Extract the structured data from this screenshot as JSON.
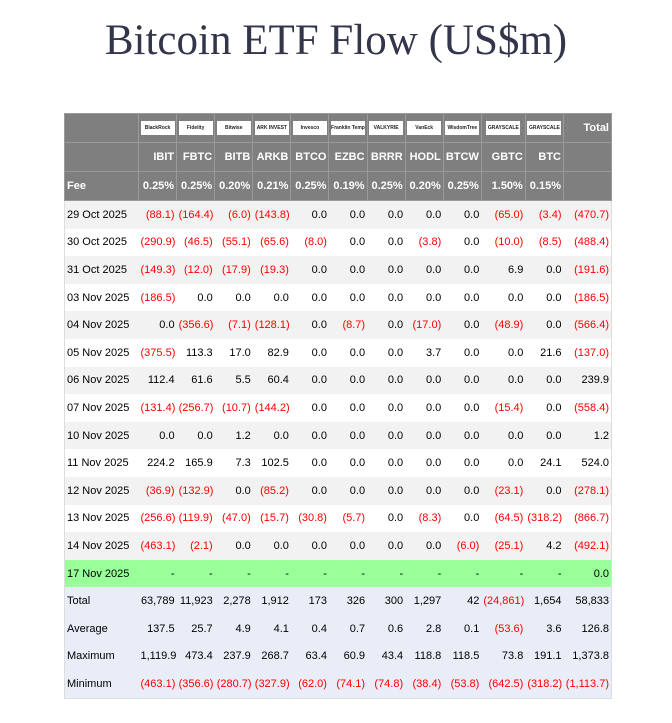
{
  "title": "Bitcoin ETF Flow (US$m)",
  "logos": [
    "BlackRock",
    "Fidelity",
    "Bitwise",
    "ARK INVEST",
    "Invesco",
    "Franklin Templeton",
    "VALKYRIE",
    "VanEck",
    "WisdomTree",
    "GRAYSCALE",
    "GRAYSCALE"
  ],
  "total_header": "Total",
  "tickers": [
    "IBIT",
    "FBTC",
    "BITB",
    "ARKB",
    "BTCO",
    "EZBC",
    "BRRR",
    "HODL",
    "BTCW",
    "GBTC",
    "BTC"
  ],
  "fee_label": "Fee",
  "fees": [
    "0.25%",
    "0.25%",
    "0.20%",
    "0.21%",
    "0.25%",
    "0.19%",
    "0.25%",
    "0.20%",
    "0.25%",
    "1.50%",
    "0.15%"
  ],
  "colors": {
    "header_bg": "#7f7f7f",
    "negative": "#ff0000",
    "today_bg": "#99ff99",
    "summary_bg": "#e8edf7"
  },
  "rows": [
    {
      "date": "29 Oct 2025",
      "values": [
        "(88.1)",
        "(164.4)",
        "(6.0)",
        "(143.8)",
        "0.0",
        "0.0",
        "0.0",
        "0.0",
        "0.0",
        "(65.0)",
        "(3.4)",
        "(470.7)"
      ]
    },
    {
      "date": "30 Oct 2025",
      "values": [
        "(290.9)",
        "(46.5)",
        "(55.1)",
        "(65.6)",
        "(8.0)",
        "0.0",
        "0.0",
        "(3.8)",
        "0.0",
        "(10.0)",
        "(8.5)",
        "(488.4)"
      ]
    },
    {
      "date": "31 Oct 2025",
      "values": [
        "(149.3)",
        "(12.0)",
        "(17.9)",
        "(19.3)",
        "0.0",
        "0.0",
        "0.0",
        "0.0",
        "0.0",
        "6.9",
        "0.0",
        "(191.6)"
      ]
    },
    {
      "date": "03 Nov 2025",
      "values": [
        "(186.5)",
        "0.0",
        "0.0",
        "0.0",
        "0.0",
        "0.0",
        "0.0",
        "0.0",
        "0.0",
        "0.0",
        "0.0",
        "(186.5)"
      ]
    },
    {
      "date": "04 Nov 2025",
      "values": [
        "0.0",
        "(356.6)",
        "(7.1)",
        "(128.1)",
        "0.0",
        "(8.7)",
        "0.0",
        "(17.0)",
        "0.0",
        "(48.9)",
        "0.0",
        "(566.4)"
      ]
    },
    {
      "date": "05 Nov 2025",
      "values": [
        "(375.5)",
        "113.3",
        "17.0",
        "82.9",
        "0.0",
        "0.0",
        "0.0",
        "3.7",
        "0.0",
        "0.0",
        "21.6",
        "(137.0)"
      ]
    },
    {
      "date": "06 Nov 2025",
      "values": [
        "112.4",
        "61.6",
        "5.5",
        "60.4",
        "0.0",
        "0.0",
        "0.0",
        "0.0",
        "0.0",
        "0.0",
        "0.0",
        "239.9"
      ]
    },
    {
      "date": "07 Nov 2025",
      "values": [
        "(131.4)",
        "(256.7)",
        "(10.7)",
        "(144.2)",
        "0.0",
        "0.0",
        "0.0",
        "0.0",
        "0.0",
        "(15.4)",
        "0.0",
        "(558.4)"
      ]
    },
    {
      "date": "10 Nov 2025",
      "values": [
        "0.0",
        "0.0",
        "1.2",
        "0.0",
        "0.0",
        "0.0",
        "0.0",
        "0.0",
        "0.0",
        "0.0",
        "0.0",
        "1.2"
      ]
    },
    {
      "date": "11 Nov 2025",
      "values": [
        "224.2",
        "165.9",
        "7.3",
        "102.5",
        "0.0",
        "0.0",
        "0.0",
        "0.0",
        "0.0",
        "0.0",
        "24.1",
        "524.0"
      ]
    },
    {
      "date": "12 Nov 2025",
      "values": [
        "(36.9)",
        "(132.9)",
        "0.0",
        "(85.2)",
        "0.0",
        "0.0",
        "0.0",
        "0.0",
        "0.0",
        "(23.1)",
        "0.0",
        "(278.1)"
      ]
    },
    {
      "date": "13 Nov 2025",
      "values": [
        "(256.6)",
        "(119.9)",
        "(47.0)",
        "(15.7)",
        "(30.8)",
        "(5.7)",
        "0.0",
        "(8.3)",
        "0.0",
        "(64.5)",
        "(318.2)",
        "(866.7)"
      ]
    },
    {
      "date": "14 Nov 2025",
      "values": [
        "(463.1)",
        "(2.1)",
        "0.0",
        "0.0",
        "0.0",
        "0.0",
        "0.0",
        "0.0",
        "(6.0)",
        "(25.1)",
        "4.2",
        "(492.1)"
      ]
    },
    {
      "date": "17 Nov 2025",
      "today": true,
      "values": [
        "-",
        "-",
        "-",
        "-",
        "-",
        "-",
        "-",
        "-",
        "-",
        "-",
        "-",
        "0.0"
      ]
    }
  ],
  "summary": [
    {
      "label": "Total",
      "values": [
        "63,789",
        "11,923",
        "2,278",
        "1,912",
        "173",
        "326",
        "300",
        "1,297",
        "42",
        "(24,861)",
        "1,654",
        "58,833"
      ]
    },
    {
      "label": "Average",
      "values": [
        "137.5",
        "25.7",
        "4.9",
        "4.1",
        "0.4",
        "0.7",
        "0.6",
        "2.8",
        "0.1",
        "(53.6)",
        "3.6",
        "126.8"
      ]
    },
    {
      "label": "Maximum",
      "values": [
        "1,119.9",
        "473.4",
        "237.9",
        "268.7",
        "63.4",
        "60.9",
        "43.4",
        "118.8",
        "118.5",
        "73.8",
        "191.1",
        "1,373.8"
      ]
    },
    {
      "label": "Minimum",
      "values": [
        "(463.1)",
        "(356.6)",
        "(280.7)",
        "(327.9)",
        "(62.0)",
        "(74.1)",
        "(74.8)",
        "(38.4)",
        "(53.8)",
        "(642.5)",
        "(318.2)",
        "(1,113.7)"
      ]
    }
  ]
}
